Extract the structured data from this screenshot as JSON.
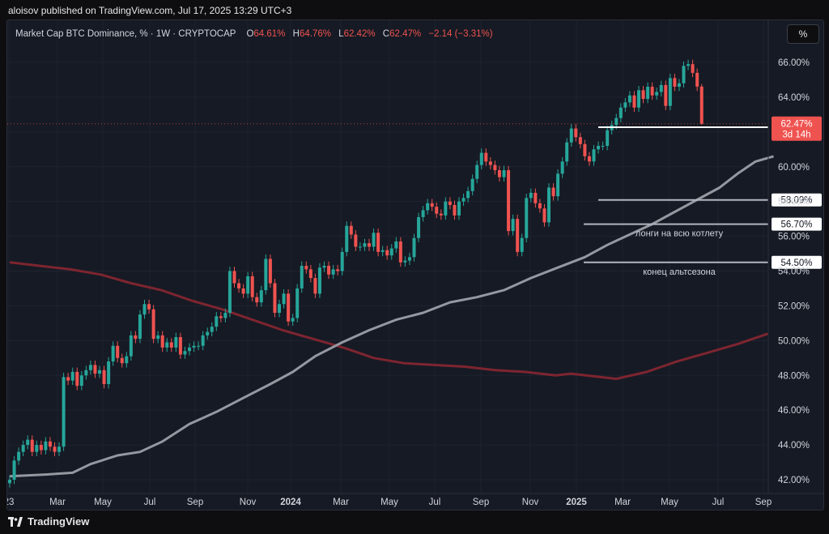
{
  "header": {
    "publisher_line": "aloisov published on TradingView.com, Jul 17, 2025 13:29 UTC+3"
  },
  "footer": {
    "brand": "TradingView"
  },
  "toolbar": {
    "percent_label": "%"
  },
  "colors": {
    "up": "#26a69a",
    "down": "#ef5350",
    "ma_fast": "#9598a1",
    "ma_slow": "#7d2530",
    "panel_bg": "#161a24",
    "grid": "#1f2330",
    "text": "#d1d4dc"
  },
  "legend": {
    "symbol": "Market Cap BTC Dominance, % · 1W · CRYPTOCAP",
    "o_label": "O",
    "o": "64.61%",
    "h_label": "H",
    "h": "64.76%",
    "l_label": "L",
    "l": "62.42%",
    "c_label": "C",
    "c": "62.47%",
    "change": "−2.14 (−3.31%)"
  },
  "chart_data": {
    "type": "candlestick",
    "symbol": "Market Cap BTC Dominance",
    "interval": "1W",
    "unit": "%",
    "ylim": [
      41.6,
      67.0
    ],
    "y_ticks": [
      "42.00%",
      "44.00%",
      "46.00%",
      "48.00%",
      "50.00%",
      "52.00%",
      "54.00%",
      "56.00%",
      "58.00%",
      "60.00%",
      "62.00%",
      "64.00%",
      "66.00%"
    ],
    "x_ticks": [
      "23",
      "Mar",
      "May",
      "Jul",
      "Sep",
      "Nov",
      "2024",
      "Mar",
      "May",
      "Jul",
      "Sep",
      "Nov",
      "2025",
      "Mar",
      "May",
      "Jul",
      "Sep"
    ],
    "x_ticks_bold": [
      "2024",
      "2025"
    ],
    "x_start": "2022-12-26",
    "candle_closes": [
      42.0,
      43.1,
      43.6,
      44.0,
      44.3,
      43.6,
      44.0,
      43.7,
      44.2,
      43.9,
      43.6,
      43.9,
      47.9,
      47.7,
      48.2,
      47.4,
      48.0,
      48.3,
      48.6,
      48.1,
      48.3,
      47.5,
      48.8,
      49.7,
      49.0,
      48.7,
      49.1,
      50.3,
      50.1,
      51.5,
      52.1,
      51.8,
      50.1,
      50.3,
      49.6,
      49.9,
      49.6,
      50.2,
      49.2,
      49.4,
      49.6,
      49.7,
      49.7,
      50.3,
      50.5,
      50.8,
      51.4,
      51.3,
      51.6,
      54.0,
      53.3,
      53.0,
      52.7,
      53.7,
      52.5,
      52.2,
      52.9,
      54.7,
      53.3,
      51.6,
      52.1,
      52.7,
      51.1,
      51.3,
      53.0,
      54.3,
      54.1,
      53.6,
      52.7,
      54.2,
      54.3,
      53.8,
      54.1,
      54.0,
      55.1,
      56.6,
      56.1,
      55.4,
      55.4,
      55.6,
      55.4,
      56.2,
      55.1,
      55.2,
      54.9,
      55.3,
      55.7,
      54.5,
      54.6,
      54.8,
      55.9,
      57.1,
      57.5,
      57.9,
      57.7,
      57.3,
      57.2,
      58.0,
      57.8,
      57.2,
      58.0,
      58.2,
      58.6,
      59.3,
      60.1,
      60.8,
      60.3,
      60.1,
      59.8,
      59.4,
      59.8,
      56.3,
      57.0,
      55.1,
      55.9,
      58.2,
      58.5,
      57.9,
      57.6,
      56.8,
      58.8,
      58.3,
      59.6,
      60.3,
      61.4,
      62.2,
      61.7,
      61.3,
      60.6,
      60.3,
      61.0,
      61.2,
      61.2,
      62.1,
      62.4,
      62.8,
      63.4,
      63.7,
      64.1,
      63.4,
      64.4,
      63.9,
      64.6,
      64.1,
      64.3,
      64.7,
      63.5,
      65.1,
      64.6,
      64.8,
      65.8,
      65.9,
      65.4,
      64.61,
      62.47
    ],
    "last_candle": {
      "open": 64.61,
      "high": 64.76,
      "low": 62.42,
      "close": 62.47
    },
    "moving_average_fast": [
      [
        0,
        42.2
      ],
      [
        8,
        42.3
      ],
      [
        14,
        42.4
      ],
      [
        18,
        42.9
      ],
      [
        24,
        43.4
      ],
      [
        29,
        43.6
      ],
      [
        34,
        44.2
      ],
      [
        40,
        45.2
      ],
      [
        46,
        45.9
      ],
      [
        52,
        46.7
      ],
      [
        58,
        47.5
      ],
      [
        63,
        48.2
      ],
      [
        68,
        49.1
      ],
      [
        74,
        49.9
      ],
      [
        80,
        50.6
      ],
      [
        86,
        51.2
      ],
      [
        92,
        51.6
      ],
      [
        98,
        52.2
      ],
      [
        104,
        52.5
      ],
      [
        110,
        52.9
      ],
      [
        116,
        53.6
      ],
      [
        122,
        54.2
      ],
      [
        128,
        54.8
      ],
      [
        133,
        55.5
      ],
      [
        138,
        56.1
      ],
      [
        143,
        56.7
      ],
      [
        148,
        57.4
      ],
      [
        153,
        58.1
      ],
      [
        158,
        58.8
      ],
      [
        162,
        59.6
      ],
      [
        166,
        60.3
      ],
      [
        170,
        60.6
      ]
    ],
    "moving_average_slow": [
      [
        0,
        54.5
      ],
      [
        10,
        54.3
      ],
      [
        20,
        54.1
      ],
      [
        30,
        53.8
      ],
      [
        40,
        53.3
      ],
      [
        50,
        52.9
      ],
      [
        60,
        52.3
      ],
      [
        70,
        51.8
      ],
      [
        80,
        51.2
      ],
      [
        90,
        50.6
      ],
      [
        100,
        50.1
      ],
      [
        110,
        49.6
      ],
      [
        120,
        49.0
      ],
      [
        130,
        48.7
      ],
      [
        140,
        48.6
      ],
      [
        150,
        48.5
      ],
      [
        160,
        48.3
      ],
      [
        170,
        48.2
      ],
      [
        180,
        48.0
      ],
      [
        185,
        48.1
      ],
      [
        190,
        48.0
      ],
      [
        200,
        47.8
      ],
      [
        210,
        48.2
      ],
      [
        220,
        48.8
      ],
      [
        230,
        49.3
      ],
      [
        240,
        49.8
      ],
      [
        250,
        50.4
      ]
    ],
    "horizontal_lines": [
      {
        "value": 62.27,
        "label": "62.27%",
        "color": "#ffffff",
        "annotation": ""
      },
      {
        "value": 58.09,
        "label": "58.09%",
        "color": "#b2b5be",
        "annotation": ""
      },
      {
        "value": 56.7,
        "label": "56.70%",
        "color": "#b2b5be",
        "annotation": "лонги на всю котлету"
      },
      {
        "value": 54.5,
        "label": "54.50%",
        "color": "#b2b5be",
        "annotation": "конец альтсезона"
      }
    ],
    "price_tag": {
      "value": 62.47,
      "label": "62.47%",
      "countdown": "3d 14h"
    }
  }
}
